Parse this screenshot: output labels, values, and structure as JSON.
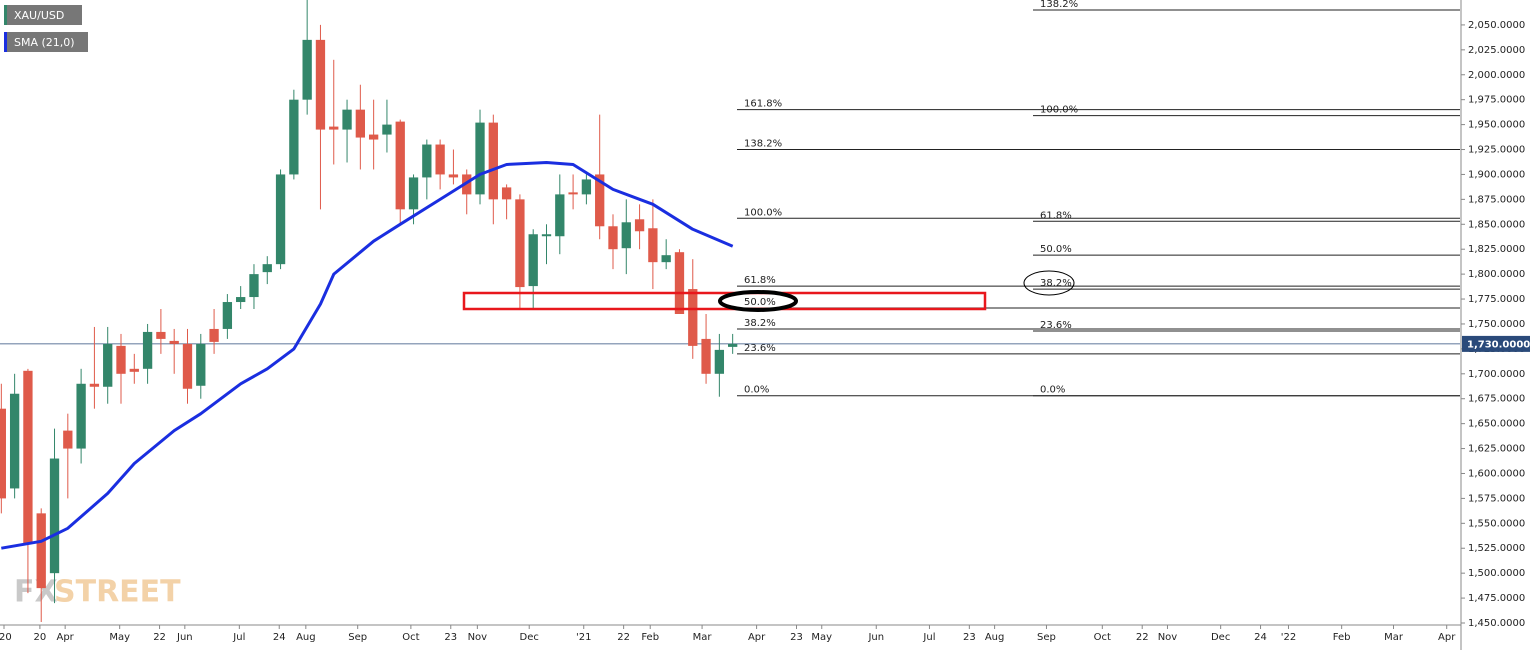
{
  "chart_data": {
    "type": "candlestick",
    "symbol": "XAU/USD",
    "up_color": "#33866a",
    "down_color": "#df5a4a",
    "xlim": [
      -0.1,
      109.7
    ],
    "ylim": [
      1449,
      2075
    ],
    "grid": false,
    "xticks": [
      {
        "value": 0.2,
        "label": "'20"
      },
      {
        "value": 2.9,
        "label": "20"
      },
      {
        "value": 4.8,
        "label": "Apr"
      },
      {
        "value": 8.9,
        "label": "May"
      },
      {
        "value": 11.9,
        "label": "22"
      },
      {
        "value": 13.8,
        "label": "Jun"
      },
      {
        "value": 17.9,
        "label": "Jul"
      },
      {
        "value": 20.9,
        "label": "24"
      },
      {
        "value": 22.9,
        "label": "Aug"
      },
      {
        "value": 26.8,
        "label": "Sep"
      },
      {
        "value": 30.8,
        "label": "Oct"
      },
      {
        "value": 33.8,
        "label": "23"
      },
      {
        "value": 35.8,
        "label": "Nov"
      },
      {
        "value": 39.7,
        "label": "Dec"
      },
      {
        "value": 43.8,
        "label": "'21"
      },
      {
        "value": 46.8,
        "label": "22"
      },
      {
        "value": 48.8,
        "label": "Feb"
      },
      {
        "value": 52.7,
        "label": "Mar"
      },
      {
        "value": 56.8,
        "label": "Apr"
      },
      {
        "value": 59.8,
        "label": "23"
      },
      {
        "value": 61.7,
        "label": "May"
      },
      {
        "value": 65.8,
        "label": "Jun"
      },
      {
        "value": 69.8,
        "label": "Jul"
      },
      {
        "value": 72.8,
        "label": "23"
      },
      {
        "value": 74.7,
        "label": "Aug"
      },
      {
        "value": 78.6,
        "label": "Sep"
      },
      {
        "value": 82.8,
        "label": "Oct"
      },
      {
        "value": 85.8,
        "label": "22"
      },
      {
        "value": 87.7,
        "label": "Nov"
      },
      {
        "value": 91.7,
        "label": "Dec"
      },
      {
        "value": 94.7,
        "label": "24"
      },
      {
        "value": 96.8,
        "label": "'22"
      },
      {
        "value": 100.8,
        "label": "Feb"
      },
      {
        "value": 104.7,
        "label": "Mar"
      },
      {
        "value": 108.7,
        "label": "Apr"
      }
    ],
    "yticks": [
      {
        "value": 2050,
        "label": "2,050.0000"
      },
      {
        "value": 2025,
        "label": "2,025.0000"
      },
      {
        "value": 2000,
        "label": "2,000.0000"
      },
      {
        "value": 1975,
        "label": "1,975.0000"
      },
      {
        "value": 1950,
        "label": "1,950.0000"
      },
      {
        "value": 1925,
        "label": "1,925.0000"
      },
      {
        "value": 1900,
        "label": "1,900.0000"
      },
      {
        "value": 1875,
        "label": "1,875.0000"
      },
      {
        "value": 1850,
        "label": "1,850.0000"
      },
      {
        "value": 1825,
        "label": "1,825.0000"
      },
      {
        "value": 1800,
        "label": "1,800.0000"
      },
      {
        "value": 1775,
        "label": "1,775.0000"
      },
      {
        "value": 1750,
        "label": "1,750.0000"
      },
      {
        "value": 1725,
        "label": "1,725.0000"
      },
      {
        "value": 1700,
        "label": "1,700.0000"
      },
      {
        "value": 1675,
        "label": "1,675.0000"
      },
      {
        "value": 1650,
        "label": "1,650.0000"
      },
      {
        "value": 1625,
        "label": "1,625.0000"
      },
      {
        "value": 1600,
        "label": "1,600.0000"
      },
      {
        "value": 1575,
        "label": "1,575.0000"
      },
      {
        "value": 1550,
        "label": "1,550.0000"
      },
      {
        "value": 1525,
        "label": "1,525.0000"
      },
      {
        "value": 1500,
        "label": "1,500.0000"
      },
      {
        "value": 1475,
        "label": "1,475.0000"
      },
      {
        "value": 1450,
        "label": "1,450.0000"
      }
    ],
    "x": [
      0,
      1,
      2,
      3,
      4,
      5,
      6,
      7,
      8,
      9,
      10,
      11,
      12,
      13,
      14,
      15,
      16,
      17,
      18,
      19,
      20,
      21,
      22,
      23,
      24,
      25,
      26,
      27,
      28,
      29,
      30,
      31,
      32,
      33,
      34,
      35,
      36,
      37,
      38,
      39,
      40,
      41,
      42,
      43,
      44,
      45,
      46,
      47,
      48,
      49,
      50,
      51,
      52,
      53,
      54,
      55
    ],
    "open": [
      1665,
      1585,
      1703,
      1560,
      1500,
      1643,
      1625,
      1690,
      1687,
      1728,
      1705,
      1705,
      1742,
      1733,
      1730,
      1688,
      1745,
      1745,
      1772,
      1777,
      1802,
      1810,
      1900,
      1975,
      2035,
      1948,
      1945,
      1965,
      1940,
      1940,
      1953,
      1865,
      1897,
      1930,
      1900,
      1900,
      1880,
      1952,
      1887,
      1875,
      1788,
      1838,
      1838,
      1882,
      1880,
      1900,
      1848,
      1826,
      1855,
      1846,
      1812,
      1822,
      1785,
      1735,
      1700,
      1727
    ],
    "high": [
      1690,
      1700,
      1705,
      1565,
      1645,
      1660,
      1705,
      1747,
      1747,
      1740,
      1720,
      1750,
      1765,
      1745,
      1745,
      1740,
      1765,
      1780,
      1788,
      1810,
      1818,
      1905,
      1985,
      2075,
      2050,
      2015,
      1975,
      1990,
      1975,
      1975,
      1955,
      1900,
      1935,
      1935,
      1925,
      1905,
      1965,
      1960,
      1890,
      1880,
      1845,
      1850,
      1900,
      1900,
      1900,
      1960,
      1860,
      1875,
      1870,
      1875,
      1835,
      1825,
      1815,
      1760,
      1740,
      1740
    ],
    "low": [
      1560,
      1575,
      1480,
      1451,
      1470,
      1575,
      1610,
      1665,
      1670,
      1670,
      1690,
      1690,
      1720,
      1700,
      1670,
      1675,
      1720,
      1735,
      1765,
      1765,
      1790,
      1805,
      1895,
      1960,
      1865,
      1910,
      1912,
      1905,
      1905,
      1922,
      1850,
      1850,
      1875,
      1885,
      1890,
      1860,
      1870,
      1850,
      1855,
      1765,
      1765,
      1810,
      1820,
      1865,
      1870,
      1835,
      1805,
      1800,
      1825,
      1785,
      1805,
      1760,
      1715,
      1690,
      1677,
      1720
    ],
    "close": [
      1575,
      1680,
      1530,
      1485,
      1615,
      1625,
      1690,
      1687,
      1730,
      1700,
      1702,
      1742,
      1735,
      1730,
      1685,
      1730,
      1732,
      1772,
      1777,
      1800,
      1810,
      1900,
      1975,
      2035,
      1945,
      1945,
      1965,
      1937,
      1935,
      1950,
      1865,
      1897,
      1930,
      1900,
      1897,
      1880,
      1952,
      1875,
      1875,
      1787,
      1840,
      1840,
      1880,
      1880,
      1895,
      1848,
      1825,
      1852,
      1843,
      1812,
      1819,
      1760,
      1728,
      1700,
      1724,
      1730
    ],
    "sma": {
      "name": "SMA (21,0)",
      "color": "#1a2ee0",
      "x": [
        0,
        3,
        5,
        8,
        10,
        13,
        15,
        18,
        20,
        22,
        24,
        25,
        27,
        28,
        30,
        33,
        36,
        38,
        41,
        43,
        46,
        49,
        52,
        55
      ],
      "values": [
        1525,
        1532,
        1545,
        1580,
        1610,
        1643,
        1660,
        1690,
        1705,
        1725,
        1770,
        1800,
        1822,
        1833,
        1850,
        1875,
        1900,
        1910,
        1912,
        1910,
        1885,
        1870,
        1845,
        1828
      ]
    },
    "last_price": {
      "value": 1730,
      "label": "1,730.0000"
    },
    "fib_sets": [
      {
        "levels": [
          {
            "label": "161.8%",
            "price": 1965
          },
          {
            "label": "138.2%",
            "price": 1925
          },
          {
            "label": "100.0%",
            "price": 1856
          },
          {
            "label": "61.8%",
            "price": 1788
          },
          {
            "label": "50.0%",
            "price": 1766
          },
          {
            "label": "38.2%",
            "price": 1745
          },
          {
            "label": "23.6%",
            "price": 1720
          },
          {
            "label": "0.0%",
            "price": 1678
          }
        ]
      },
      {
        "levels": [
          {
            "label": "138.2%",
            "price": 2065
          },
          {
            "label": "100.0%",
            "price": 1959
          },
          {
            "label": "61.8%",
            "price": 1853
          },
          {
            "label": "50.0%",
            "price": 1819
          },
          {
            "label": "38.2%",
            "price": 1785
          },
          {
            "label": "23.6%",
            "price": 1743
          },
          {
            "label": "0.0%",
            "price": 1678
          }
        ]
      }
    ],
    "watermark": [
      "FX",
      "STREET"
    ]
  }
}
